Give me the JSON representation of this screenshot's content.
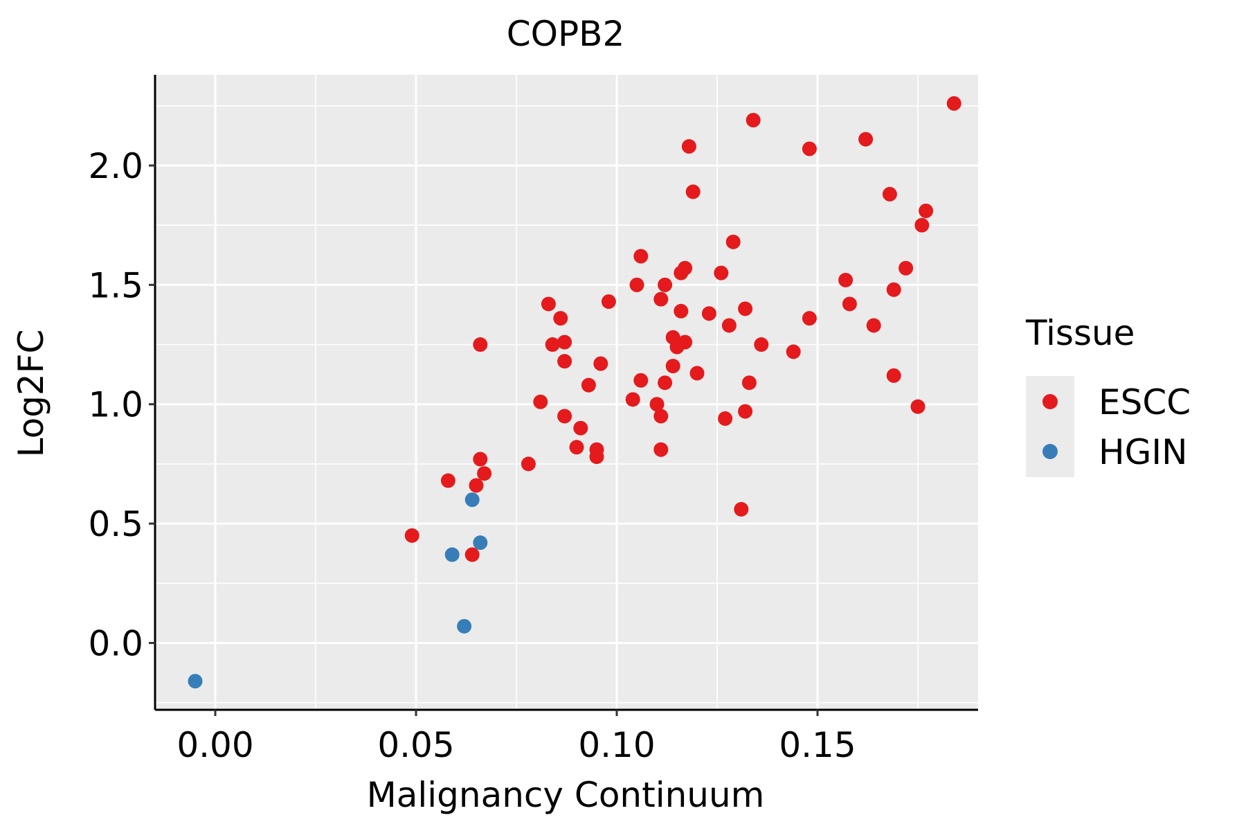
{
  "chart_data": {
    "type": "scatter",
    "title": "COPB2",
    "xlabel": "Malignancy Continuum",
    "ylabel": "Log2FC",
    "xlim": [
      -0.015,
      0.19
    ],
    "ylim": [
      -0.28,
      2.38
    ],
    "x_ticks": [
      0.0,
      0.05,
      0.1,
      0.15
    ],
    "x_tick_labels": [
      "0.00",
      "0.05",
      "0.10",
      "0.15"
    ],
    "y_ticks": [
      0.0,
      0.5,
      1.0,
      1.5,
      2.0
    ],
    "y_tick_labels": [
      "0.0",
      "0.5",
      "1.0",
      "1.5",
      "2.0"
    ],
    "grid": true,
    "legend": {
      "title": "Tissue",
      "placement": "right"
    },
    "series": [
      {
        "name": "ESCC",
        "color": "#e41a1c",
        "points": [
          [
            0.049,
            0.45
          ],
          [
            0.058,
            0.68
          ],
          [
            0.064,
            0.37
          ],
          [
            0.065,
            0.66
          ],
          [
            0.066,
            1.25
          ],
          [
            0.066,
            0.77
          ],
          [
            0.067,
            0.71
          ],
          [
            0.078,
            0.75
          ],
          [
            0.081,
            1.01
          ],
          [
            0.083,
            1.42
          ],
          [
            0.084,
            1.25
          ],
          [
            0.086,
            1.36
          ],
          [
            0.087,
            1.26
          ],
          [
            0.087,
            1.18
          ],
          [
            0.087,
            0.95
          ],
          [
            0.09,
            0.82
          ],
          [
            0.091,
            0.9
          ],
          [
            0.093,
            1.08
          ],
          [
            0.095,
            0.81
          ],
          [
            0.095,
            0.78
          ],
          [
            0.096,
            1.17
          ],
          [
            0.098,
            1.43
          ],
          [
            0.104,
            1.02
          ],
          [
            0.105,
            1.5
          ],
          [
            0.106,
            1.62
          ],
          [
            0.106,
            1.1
          ],
          [
            0.11,
            1.0
          ],
          [
            0.111,
            1.44
          ],
          [
            0.111,
            0.95
          ],
          [
            0.111,
            0.81
          ],
          [
            0.112,
            1.5
          ],
          [
            0.112,
            1.09
          ],
          [
            0.114,
            1.28
          ],
          [
            0.114,
            1.16
          ],
          [
            0.115,
            1.24
          ],
          [
            0.116,
            1.55
          ],
          [
            0.116,
            1.39
          ],
          [
            0.117,
            1.26
          ],
          [
            0.117,
            1.57
          ],
          [
            0.118,
            2.08
          ],
          [
            0.119,
            1.89
          ],
          [
            0.12,
            1.13
          ],
          [
            0.123,
            1.38
          ],
          [
            0.126,
            1.55
          ],
          [
            0.127,
            0.94
          ],
          [
            0.128,
            1.33
          ],
          [
            0.129,
            1.68
          ],
          [
            0.131,
            0.56
          ],
          [
            0.132,
            1.4
          ],
          [
            0.132,
            0.97
          ],
          [
            0.133,
            1.09
          ],
          [
            0.134,
            2.19
          ],
          [
            0.136,
            1.25
          ],
          [
            0.144,
            1.22
          ],
          [
            0.148,
            1.36
          ],
          [
            0.148,
            2.07
          ],
          [
            0.157,
            1.52
          ],
          [
            0.158,
            1.42
          ],
          [
            0.162,
            2.11
          ],
          [
            0.164,
            1.33
          ],
          [
            0.168,
            1.88
          ],
          [
            0.169,
            1.48
          ],
          [
            0.169,
            1.12
          ],
          [
            0.172,
            1.57
          ],
          [
            0.175,
            0.99
          ],
          [
            0.176,
            1.75
          ],
          [
            0.177,
            1.81
          ],
          [
            0.184,
            2.26
          ]
        ]
      },
      {
        "name": "HGIN",
        "color": "#377eb8",
        "points": [
          [
            -0.005,
            -0.16
          ],
          [
            0.059,
            0.37
          ],
          [
            0.062,
            0.07
          ],
          [
            0.064,
            0.6
          ],
          [
            0.066,
            0.42
          ]
        ]
      }
    ]
  }
}
